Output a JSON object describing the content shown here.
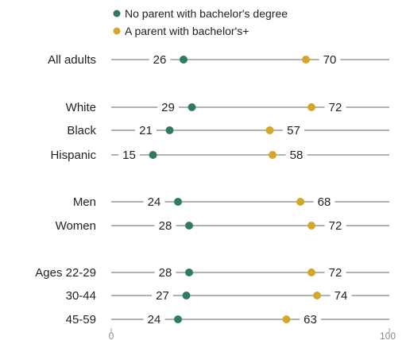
{
  "chart_data": {
    "type": "dot-plot",
    "title": "",
    "xlabel": "",
    "ylabel": "",
    "xlim": [
      0,
      100
    ],
    "xticks": [
      0,
      100
    ],
    "grid": false,
    "legend_position": "top",
    "colors": {
      "series1": "#2e7a66",
      "series2": "#d4a62a",
      "line": "#666666",
      "tick": "#999999"
    },
    "series": [
      {
        "name": "No parent with bachelor's degree",
        "color": "#2e7a66"
      },
      {
        "name": "A parent with bachelor's+",
        "color": "#d4a62a"
      }
    ],
    "rows": [
      {
        "label": "All adults",
        "values": [
          26,
          70
        ]
      },
      {
        "label": "White",
        "values": [
          29,
          72
        ]
      },
      {
        "label": "Black",
        "values": [
          21,
          57
        ]
      },
      {
        "label": "Hispanic",
        "values": [
          15,
          58
        ]
      },
      {
        "label": "Men",
        "values": [
          24,
          68
        ]
      },
      {
        "label": "Women",
        "values": [
          28,
          72
        ]
      },
      {
        "label": "Ages 22-29",
        "values": [
          28,
          72
        ]
      },
      {
        "label": "30-44",
        "values": [
          27,
          74
        ]
      },
      {
        "label": "45-59",
        "values": [
          24,
          63
        ]
      }
    ]
  }
}
